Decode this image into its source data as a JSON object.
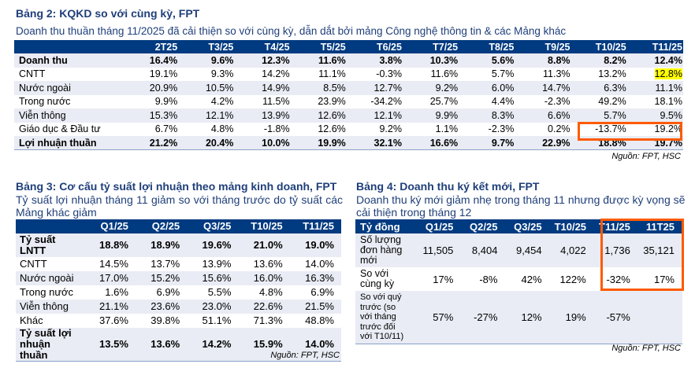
{
  "t2": {
    "title": "Bảng 2: KQKD so với cùng kỳ, FPT",
    "subtitle": "Doanh thu thuần tháng 11/2025 đã cải thiện so với cùng kỳ, dẫn dắt bởi mảng Công nghệ thông tin & các Mảng khác",
    "source": "Nguồn: FPT, HSC",
    "headers": [
      "",
      "2T25",
      "T3/25",
      "T4/25",
      "T5/25",
      "T6/25",
      "T7/25",
      "T8/25",
      "T9/25",
      "T10/25",
      "T11/25"
    ],
    "rows": [
      [
        "Doanh thu",
        "16.4%",
        "9.6%",
        "12.3%",
        "11.6%",
        "3.8%",
        "10.3%",
        "5.6%",
        "8.8%",
        "8.2%",
        "12.4%"
      ],
      [
        "CNTT",
        "19.1%",
        "9.3%",
        "14.2%",
        "11.1%",
        "-0.3%",
        "11.6%",
        "5.7%",
        "11.3%",
        "13.2%",
        "12.8%"
      ],
      [
        "Nước ngoài",
        "20.9%",
        "10.5%",
        "14.9%",
        "8.5%",
        "12.7%",
        "9.2%",
        "6.0%",
        "14.7%",
        "6.3%",
        "11.1%"
      ],
      [
        "Trong nước",
        "9.9%",
        "4.2%",
        "11.5%",
        "23.9%",
        "-34.2%",
        "25.7%",
        "4.4%",
        "-2.3%",
        "49.2%",
        "18.1%"
      ],
      [
        "Viễn thông",
        "15.3%",
        "12.1%",
        "13.9%",
        "12.6%",
        "12.1%",
        "9.9%",
        "8.3%",
        "6.6%",
        "5.7%",
        "9.5%"
      ],
      [
        "Giáo dục & Đầu tư",
        "6.7%",
        "4.8%",
        "-1.8%",
        "12.6%",
        "9.2%",
        "1.1%",
        "-2.3%",
        "0.2%",
        "-13.7%",
        "19.2%"
      ],
      [
        "Lợi nhuận thuần",
        "21.2%",
        "20.4%",
        "10.0%",
        "19.9%",
        "32.1%",
        "16.6%",
        "9.7%",
        "22.9%",
        "18.8%",
        "19.7%"
      ]
    ]
  },
  "t3": {
    "title": "Bảng 3: Cơ cấu tỷ suất lợi nhuận theo mảng kinh doanh, FPT",
    "subtitle": "Tỷ suất lợi nhuận tháng 11 giảm so với tháng trước do tỷ suất các Mảng khác giảm",
    "source": "Nguồn: FPT, HSC",
    "headers": [
      "",
      "Q1/25",
      "Q2/25",
      "Q3/25",
      "T10/25",
      "T11/25"
    ],
    "rows": [
      [
        "Tỷ suất LNTT",
        "18.8%",
        "18.9%",
        "19.6%",
        "21.0%",
        "19.0%"
      ],
      [
        "CNTT",
        "14.5%",
        "13.7%",
        "13.9%",
        "13.6%",
        "14.0%"
      ],
      [
        "Nước ngoài",
        "17.0%",
        "15.2%",
        "15.6%",
        "16.0%",
        "16.3%"
      ],
      [
        "Trong nước",
        "1.6%",
        "6.9%",
        "5.5%",
        "4.8%",
        "6.9%"
      ],
      [
        "Viễn thông",
        "21.1%",
        "23.6%",
        "23.0%",
        "22.6%",
        "21.5%"
      ],
      [
        "Khác",
        "37.6%",
        "39.8%",
        "51.1%",
        "71.3%",
        "48.8%"
      ],
      [
        "Tỷ suất lợi nhuận thuần",
        "13.5%",
        "13.6%",
        "14.2%",
        "15.9%",
        "14.0%"
      ]
    ]
  },
  "t4": {
    "title": "Bảng 4: Doanh thu ký kết mới, FPT",
    "subtitle": "Doanh thu ký mới giảm nhẹ trong tháng 11 nhưng được kỳ vọng sẽ cải thiện trong tháng 12",
    "source": "Nguồn: FPT, HSC",
    "headers": [
      "Tỷ đồng",
      "Q1/25",
      "Q2/25",
      "Q3/25",
      "T10/25",
      "T11/25",
      "11T25"
    ],
    "rows": [
      [
        "Số lượng đơn hàng mới",
        "11,505",
        "8,404",
        "9,454",
        "4,022",
        "1,736",
        "35,121"
      ],
      [
        "So với cùng kỳ",
        "17%",
        "-8%",
        "42%",
        "122%",
        "-32%",
        "17%"
      ],
      [
        "So với quý trước (so với tháng trước đối với T10/11)",
        "57%",
        "-27%",
        "12%",
        "19%",
        "-57%",
        ""
      ]
    ]
  },
  "colors": {
    "header": "#003a80",
    "title": "#1f3f7a",
    "highlight_box": "#ff5a00",
    "marker": "#ffff00"
  }
}
